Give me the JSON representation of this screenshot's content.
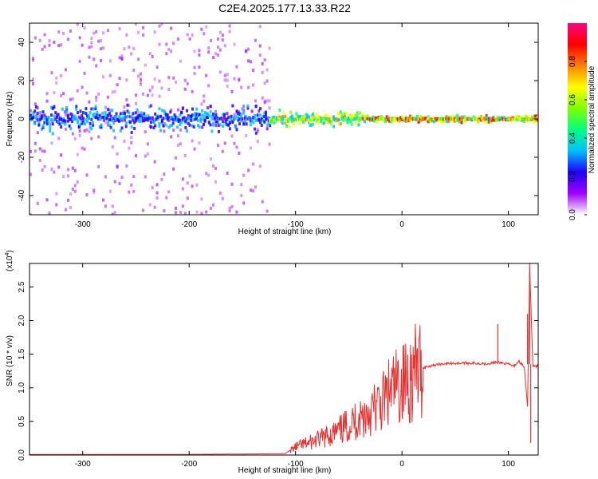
{
  "title": "C2E4.2025.177.13.33.R22",
  "chart_data": [
    {
      "type": "heatmap",
      "xlabel": "Height of straight line (km)",
      "ylabel": "Frequency (Hz)",
      "xlim": [
        -350,
        128
      ],
      "ylim": [
        -50,
        50
      ],
      "xticks": [
        -300,
        -200,
        -100,
        0,
        100
      ],
      "yticks": [
        -40,
        -20,
        0,
        20,
        40
      ],
      "colorbar": {
        "label": "Normalized spectral amplitude",
        "range": [
          0,
          1
        ],
        "ticks": [
          "0.0",
          "0.2",
          "0.4",
          "0.6",
          "0.8"
        ],
        "colors": [
          "#ffffff",
          "#a000ff",
          "#2000ff",
          "#00c0ff",
          "#00ff80",
          "#80ff00",
          "#ffff00",
          "#ff8000",
          "#ff0000",
          "#ff0080"
        ]
      },
      "features": [
        {
          "x_range": [
            -350,
            -125
          ],
          "freq_spread_hz": 50,
          "amplitude": 0.1,
          "description_level": "scattered noise"
        },
        {
          "x_range": [
            -350,
            -125
          ],
          "freq_spread_hz": 8,
          "amplitude": 0.25
        },
        {
          "x_range": [
            -125,
            -40
          ],
          "freq_spread_hz": 5,
          "amplitude": 0.5
        },
        {
          "x_range": [
            -40,
            128
          ],
          "freq_spread_hz": 2,
          "amplitude": 0.6
        }
      ]
    },
    {
      "type": "line",
      "xlabel": "Height of straight line (km)",
      "ylabel": "SNR (10 * v/v)",
      "y_multiplier": "(x10",
      "y_multiplier_exp": "4",
      "y_multiplier_close": ")",
      "xlim": [
        -350,
        128
      ],
      "ylim": [
        0,
        2.85
      ],
      "xticks": [
        -300,
        -200,
        -100,
        0,
        100
      ],
      "yticks": [
        "0.0",
        "0.5",
        "1.0",
        "1.5",
        "2.0",
        "2.5"
      ],
      "color": "#e83030",
      "series": [
        {
          "x": [
            -350,
            -200,
            -110,
            -100,
            -80,
            -60,
            -40,
            -20,
            -10,
            0,
            10,
            20,
            30,
            40,
            60,
            80,
            90,
            100,
            105,
            110,
            115,
            118,
            120,
            123,
            128
          ],
          "y": [
            0.01,
            0.01,
            0.02,
            0.12,
            0.22,
            0.35,
            0.55,
            0.75,
            0.95,
            1.05,
            1.2,
            1.3,
            1.34,
            1.36,
            1.37,
            1.36,
            1.38,
            1.35,
            1.32,
            1.4,
            1.3,
            0.7,
            2.8,
            1.32,
            1.32
          ]
        }
      ],
      "spikes": [
        {
          "x": 90,
          "y": 1.95
        },
        {
          "x": 118,
          "y": 2.1
        },
        {
          "x": 120,
          "y": 2.85
        },
        {
          "x": 121,
          "y": 0.18
        }
      ]
    }
  ]
}
